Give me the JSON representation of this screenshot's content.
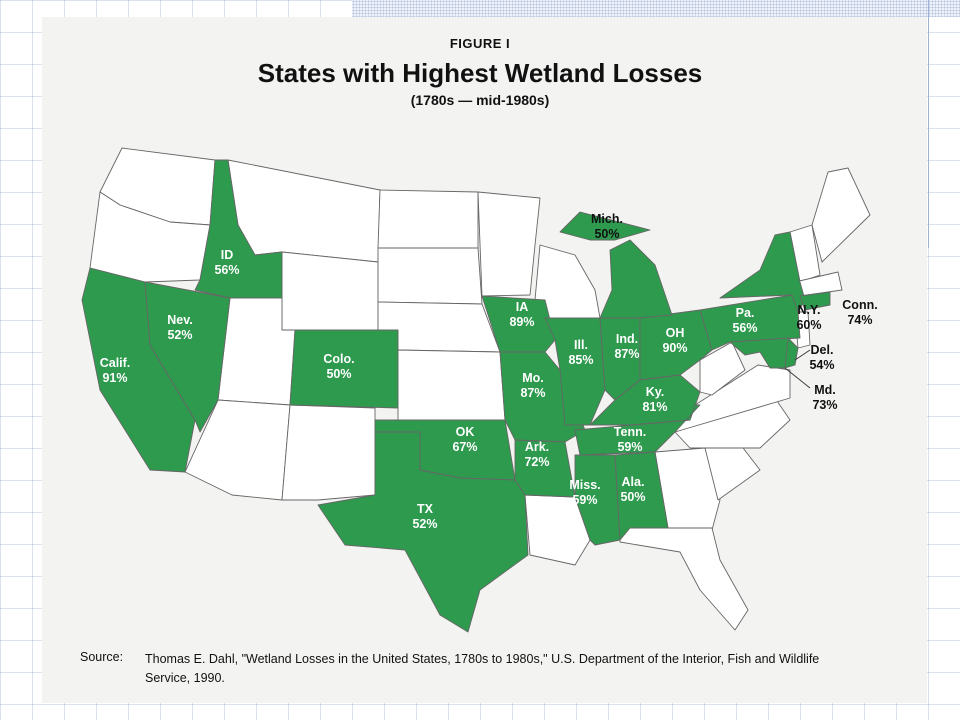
{
  "figure": {
    "label": "FIGURE   I",
    "title": "States with Highest Wetland Losses",
    "subtitle": "(1780s — mid-1980s)"
  },
  "colors": {
    "highlight": "#2e9a4e",
    "other": "#ffffff",
    "border": "#666666"
  },
  "states": [
    {
      "abbr": "Calif.",
      "loss": "91%"
    },
    {
      "abbr": "Nev.",
      "loss": "52%"
    },
    {
      "abbr": "ID",
      "loss": "56%"
    },
    {
      "abbr": "Colo.",
      "loss": "50%"
    },
    {
      "abbr": "OK",
      "loss": "67%"
    },
    {
      "abbr": "TX",
      "loss": "52%"
    },
    {
      "abbr": "IA",
      "loss": "89%"
    },
    {
      "abbr": "Mo.",
      "loss": "87%"
    },
    {
      "abbr": "Ark.",
      "loss": "72%"
    },
    {
      "abbr": "Ill.",
      "loss": "85%"
    },
    {
      "abbr": "Ind.",
      "loss": "87%"
    },
    {
      "abbr": "OH",
      "loss": "90%"
    },
    {
      "abbr": "Ky.",
      "loss": "81%"
    },
    {
      "abbr": "Tenn.",
      "loss": "59%"
    },
    {
      "abbr": "Miss.",
      "loss": "59%"
    },
    {
      "abbr": "Ala.",
      "loss": "50%"
    },
    {
      "abbr": "Mich.",
      "loss": "50%"
    },
    {
      "abbr": "Pa.",
      "loss": "56%"
    },
    {
      "abbr": "N.Y.",
      "loss": "60%"
    },
    {
      "abbr": "Conn.",
      "loss": "74%"
    },
    {
      "abbr": "Del.",
      "loss": "54%"
    },
    {
      "abbr": "Md.",
      "loss": "73%"
    }
  ],
  "source": {
    "label": "Source:",
    "text": "Thomas E. Dahl, \"Wetland Losses in the United States, 1780s to 1980s,\" U.S. Department of the Interior, Fish and Wildlife Service, 1990."
  }
}
